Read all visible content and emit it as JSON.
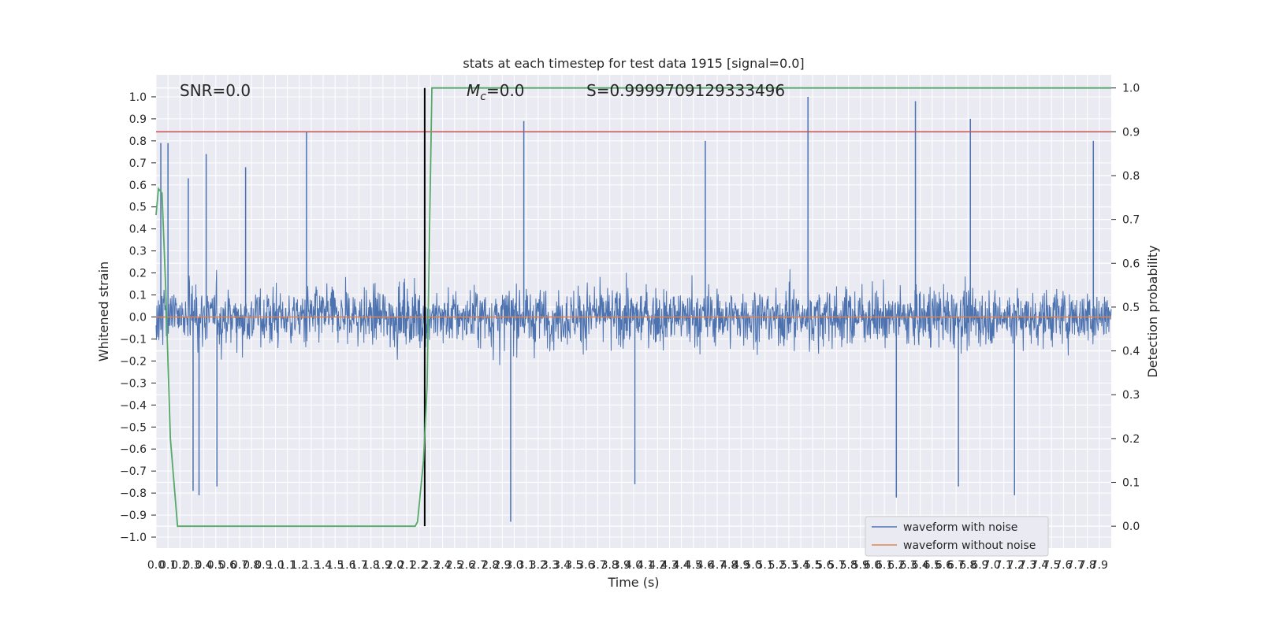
{
  "chart_data": {
    "type": "line",
    "title": "stats at each timestep for test data 1915 [signal=0.0]",
    "xlabel": "Time (s)",
    "ylabel": "Whitened strain",
    "ylabel_right": "Detection probability",
    "xlim": [
      0.0,
      8.0
    ],
    "ylim": [
      -1.05,
      1.1
    ],
    "ylim_right": [
      -0.05,
      1.03
    ],
    "x_ticks": [
      0.0,
      0.1,
      0.2,
      0.3,
      0.4,
      0.5,
      0.6,
      0.7,
      0.8,
      0.9,
      1.0,
      1.1,
      1.2,
      1.3,
      1.4,
      1.5,
      1.6,
      1.7,
      1.8,
      1.9,
      2.0,
      2.1,
      2.2,
      2.3,
      2.4,
      2.5,
      2.6,
      2.7,
      2.8,
      2.9,
      3.0,
      3.1,
      3.2,
      3.3,
      3.4,
      3.5,
      3.6,
      3.7,
      3.8,
      3.9,
      4.0,
      4.1,
      4.2,
      4.3,
      4.4,
      4.5,
      4.6,
      4.7,
      4.8,
      4.9,
      5.0,
      5.1,
      5.2,
      5.3,
      5.4,
      5.5,
      5.6,
      5.7,
      5.8,
      5.9,
      6.0,
      6.1,
      6.2,
      6.3,
      6.4,
      6.5,
      6.6,
      6.7,
      6.8,
      6.9,
      7.0,
      7.1,
      7.2,
      7.3,
      7.4,
      7.5,
      7.6,
      7.7,
      7.8,
      7.9
    ],
    "x_tick_labels": [
      "0.0",
      "0.1",
      "0.2",
      "0.3",
      "0.4",
      "0.5",
      "0.6",
      "0.7",
      "0.8",
      "0.9",
      "1.0",
      "1.1",
      "1.2",
      "1.3",
      "1.4",
      "1.5",
      "1.6",
      "1.7",
      "1.8",
      "1.9",
      "2.0",
      "2.1",
      "2.2",
      "2.3",
      "2.4",
      "2.5",
      "2.6",
      "2.7",
      "2.8",
      "2.9",
      "3.0",
      "3.1",
      "3.2",
      "3.3",
      "3.4",
      "3.5",
      "3.6",
      "3.7",
      "3.8",
      "3.9",
      "4.0",
      "4.1",
      "4.2",
      "4.3",
      "4.4",
      "4.5",
      "4.6",
      "4.7",
      "4.8",
      "4.9",
      "5.0",
      "5.1",
      "5.2",
      "5.3",
      "5.4",
      "5.5",
      "5.6",
      "5.7",
      "5.8",
      "5.9",
      "6.0",
      "6.1",
      "6.2",
      "6.3",
      "6.4",
      "6.5",
      "6.6",
      "6.7",
      "6.8",
      "6.9",
      "7.0",
      "7.1",
      "7.2",
      "7.3",
      "7.4",
      "7.5",
      "7.6",
      "7.7",
      "7.8",
      "7.9"
    ],
    "y_ticks": [
      1.0,
      0.9,
      0.8,
      0.7,
      0.6,
      0.5,
      0.4,
      0.3,
      0.2,
      0.1,
      0.0,
      -0.1,
      -0.2,
      -0.3,
      -0.4,
      -0.5,
      -0.6,
      -0.7,
      -0.8,
      -0.9,
      -1.0
    ],
    "y_tick_labels": [
      "1.0",
      "0.9",
      "0.8",
      "0.7",
      "0.6",
      "0.5",
      "0.4",
      "0.3",
      "0.2",
      "0.1",
      "0.0",
      "−0.1",
      "−0.2",
      "−0.3",
      "−0.4",
      "−0.5",
      "−0.6",
      "−0.7",
      "−0.8",
      "−0.9",
      "−1.0"
    ],
    "y_right_ticks": [
      1.0,
      0.9,
      0.8,
      0.7,
      0.6,
      0.5,
      0.4,
      0.3,
      0.2,
      0.1,
      0.0
    ],
    "y_right_tick_labels": [
      "1.0",
      "0.9",
      "0.8",
      "0.7",
      "0.6",
      "0.5",
      "0.4",
      "0.3",
      "0.2",
      "0.1",
      "0.0"
    ],
    "grid": true,
    "annotations": {
      "snr": "SNR=0.0",
      "mc_prefix": "M",
      "mc_sub": "c",
      "mc_suffix": "=0.0",
      "s": "S=0.9999709129333496"
    },
    "series": [
      {
        "name": "waveform with noise",
        "color": "#4c72b0",
        "style": "dense noise, amplitude mostly within ±0.6, peaks to 1.0 and -0.93",
        "peaks": [
          {
            "x": 0.04,
            "y": 0.79
          },
          {
            "x": 0.1,
            "y": 0.79
          },
          {
            "x": 0.27,
            "y": 0.63
          },
          {
            "x": 0.42,
            "y": 0.74
          },
          {
            "x": 0.75,
            "y": 0.68
          },
          {
            "x": 1.26,
            "y": 0.84
          },
          {
            "x": 3.08,
            "y": 0.89
          },
          {
            "x": 4.6,
            "y": 0.8
          },
          {
            "x": 5.46,
            "y": 1.0
          },
          {
            "x": 6.36,
            "y": 0.98
          },
          {
            "x": 6.82,
            "y": 0.9
          },
          {
            "x": 7.85,
            "y": 0.8
          }
        ],
        "troughs": [
          {
            "x": 0.31,
            "y": -0.79
          },
          {
            "x": 0.36,
            "y": -0.81
          },
          {
            "x": 0.51,
            "y": -0.77
          },
          {
            "x": 2.97,
            "y": -0.93
          },
          {
            "x": 4.01,
            "y": -0.76
          },
          {
            "x": 6.2,
            "y": -0.82
          },
          {
            "x": 6.72,
            "y": -0.77
          },
          {
            "x": 7.19,
            "y": -0.81
          }
        ]
      },
      {
        "name": "waveform without noise",
        "color": "#dd8452",
        "x": [
          0.0,
          8.0
        ],
        "values": [
          0.0,
          0.0
        ]
      }
    ],
    "probability_series": {
      "color": "#55a868",
      "axis": "right",
      "x": [
        0.0,
        0.02,
        0.05,
        0.08,
        0.12,
        0.18,
        2.17,
        2.19,
        2.24,
        2.27,
        2.31,
        8.0
      ],
      "values": [
        0.71,
        0.77,
        0.76,
        0.55,
        0.2,
        0.0,
        0.0,
        0.01,
        0.15,
        0.32,
        1.0,
        1.0
      ]
    },
    "threshold_line": {
      "axis": "right",
      "value": 0.9,
      "color": "#c44e52"
    },
    "vertical_line": {
      "x": 2.25,
      "color": "#000000",
      "y_from": 0.0,
      "y_to": 1.0,
      "axis": "right"
    },
    "legend": {
      "placement": "lower-right",
      "entries": [
        {
          "label": "waveform with noise",
          "color": "#4c72b0"
        },
        {
          "label": "waveform without noise",
          "color": "#dd8452"
        }
      ]
    }
  }
}
